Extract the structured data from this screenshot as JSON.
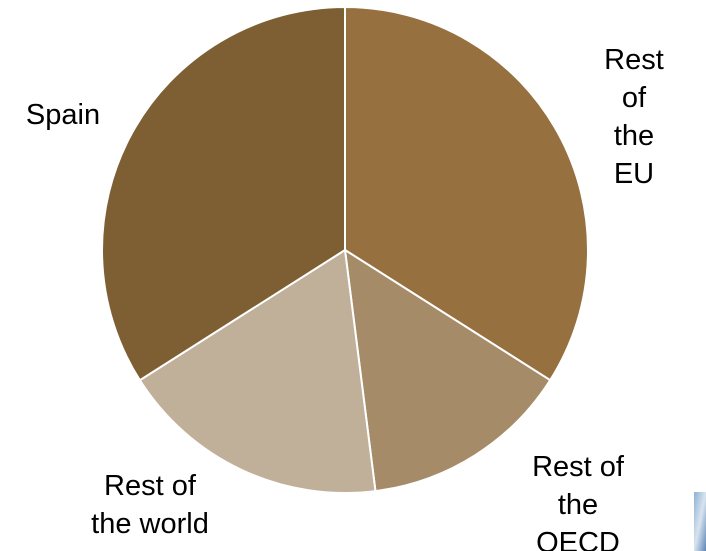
{
  "chart_data": {
    "type": "pie",
    "categories": [
      "Rest of\nthe EU",
      "Rest of\nthe OECD",
      "Rest of\nthe world",
      "Spain"
    ],
    "values": [
      34,
      14,
      18,
      34
    ],
    "colors": [
      "#96703f",
      "#a68b68",
      "#c0b09a",
      "#7d5f33"
    ]
  }
}
